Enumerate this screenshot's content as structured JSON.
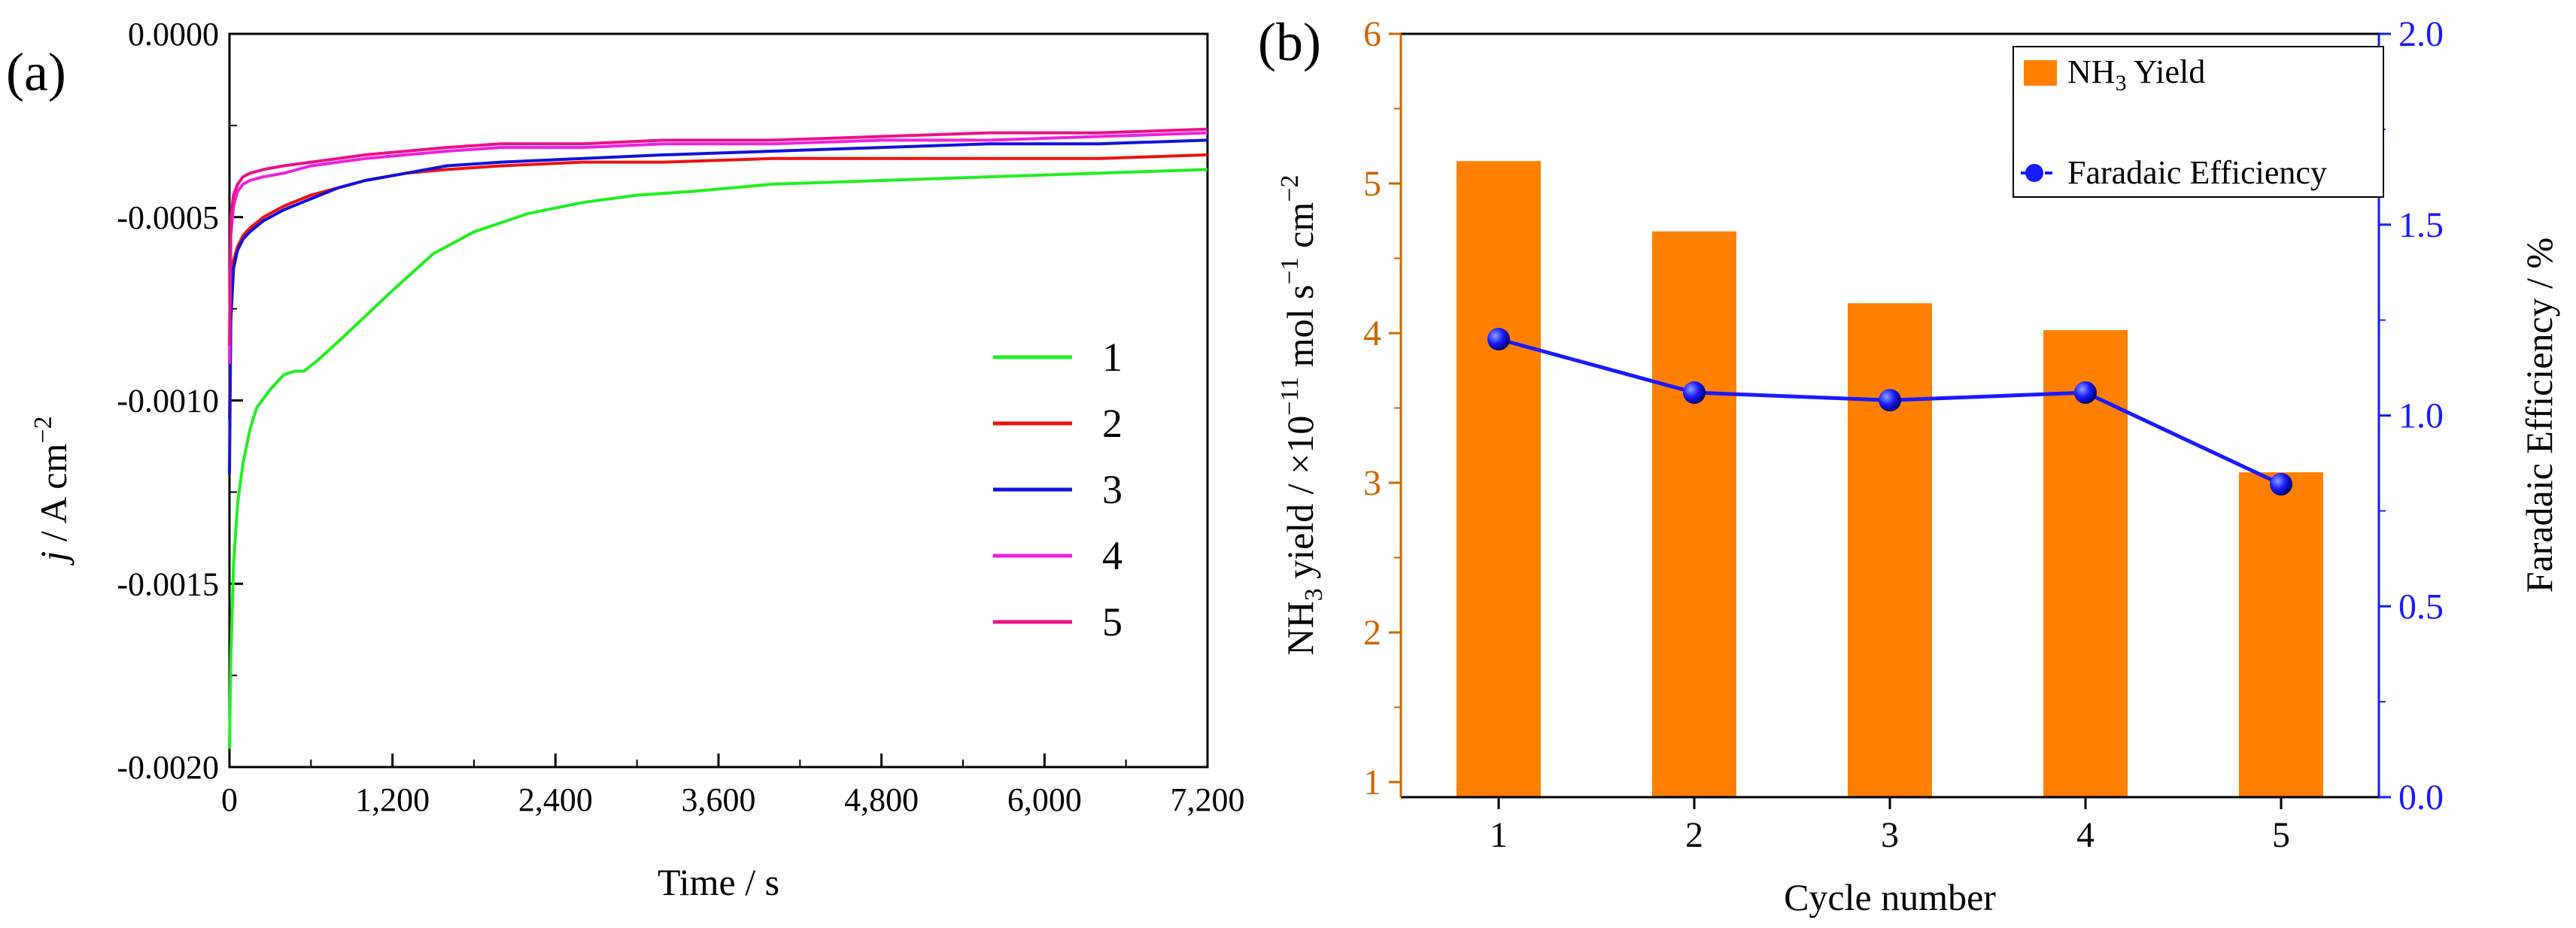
{
  "chart_data": [
    {
      "panel": "(a)",
      "type": "line",
      "xlabel": "Time / s",
      "ylabel_italic": "j",
      "ylabel_rest": " / A cm",
      "ylabel_sup": "−2",
      "xlim": [
        0,
        7200
      ],
      "ylim": [
        -0.002,
        0
      ],
      "xticks": [
        "0",
        "1,200",
        "2,400",
        "3,600",
        "4,800",
        "6,000",
        "7,200"
      ],
      "xtick_values": [
        0,
        1200,
        2400,
        3600,
        4800,
        6000,
        7200
      ],
      "yticks": [
        "-0.0020",
        "-0.0015",
        "-0.0010",
        "-0.0005",
        "0.0000"
      ],
      "ytick_values": [
        -0.002,
        -0.0015,
        -0.001,
        -0.0005,
        0
      ],
      "legend": [
        "1",
        "2",
        "3",
        "4",
        "5"
      ],
      "series": [
        {
          "name": "1",
          "color": "#22ee22",
          "x": [
            0,
            10,
            30,
            60,
            100,
            150,
            200,
            300,
            400,
            480,
            550,
            650,
            800,
            1000,
            1200,
            1500,
            1800,
            2200,
            2600,
            3000,
            3400,
            4000,
            4800,
            5600,
            6400,
            7200
          ],
          "y": [
            -0.00195,
            -0.0017,
            -0.00145,
            -0.00128,
            -0.00117,
            -0.00108,
            -0.00102,
            -0.00097,
            -0.00093,
            -0.00092,
            -0.00092,
            -0.00089,
            -0.00084,
            -0.00077,
            -0.0007,
            -0.0006,
            -0.00054,
            -0.00049,
            -0.00046,
            -0.00044,
            -0.00043,
            -0.00041,
            -0.0004,
            -0.00039,
            -0.00038,
            -0.00037
          ]
        },
        {
          "name": "2",
          "color": "#ee1111",
          "x": [
            0,
            10,
            30,
            60,
            100,
            150,
            250,
            400,
            600,
            800,
            1000,
            1300,
            1600,
            2000,
            2600,
            3200,
            4000,
            4800,
            5600,
            6400,
            7200
          ],
          "y": [
            -0.00105,
            -0.00075,
            -0.00062,
            -0.00058,
            -0.00055,
            -0.00053,
            -0.0005,
            -0.00047,
            -0.00044,
            -0.00042,
            -0.0004,
            -0.00038,
            -0.00037,
            -0.00036,
            -0.00035,
            -0.00035,
            -0.00034,
            -0.00034,
            -0.00034,
            -0.00034,
            -0.00033
          ]
        },
        {
          "name": "3",
          "color": "#1111dd",
          "x": [
            0,
            10,
            30,
            60,
            100,
            150,
            250,
            400,
            600,
            800,
            1000,
            1300,
            1600,
            2000,
            2600,
            3200,
            4000,
            4800,
            5600,
            6400,
            7200
          ],
          "y": [
            -0.0012,
            -0.00078,
            -0.00064,
            -0.00059,
            -0.00056,
            -0.00054,
            -0.00051,
            -0.00048,
            -0.00045,
            -0.00042,
            -0.0004,
            -0.00038,
            -0.00036,
            -0.00035,
            -0.00034,
            -0.00033,
            -0.00032,
            -0.00031,
            -0.0003,
            -0.0003,
            -0.00029
          ]
        },
        {
          "name": "4",
          "color": "#ee22dd",
          "x": [
            0,
            10,
            30,
            60,
            100,
            150,
            250,
            400,
            600,
            800,
            1000,
            1300,
            1600,
            2000,
            2600,
            3200,
            4000,
            4800,
            5600,
            6400,
            7200
          ],
          "y": [
            -0.0009,
            -0.00055,
            -0.00047,
            -0.00043,
            -0.00041,
            -0.0004,
            -0.00039,
            -0.00038,
            -0.00036,
            -0.00035,
            -0.00034,
            -0.00033,
            -0.00032,
            -0.00031,
            -0.00031,
            -0.0003,
            -0.0003,
            -0.00029,
            -0.00029,
            -0.00028,
            -0.00027
          ]
        },
        {
          "name": "5",
          "color": "#ee1188",
          "x": [
            0,
            10,
            30,
            60,
            100,
            150,
            250,
            400,
            600,
            800,
            1000,
            1300,
            1600,
            2000,
            2600,
            3200,
            4000,
            4800,
            5600,
            6400,
            7200
          ],
          "y": [
            -0.00085,
            -0.0005,
            -0.00044,
            -0.00041,
            -0.00039,
            -0.00038,
            -0.00037,
            -0.00036,
            -0.00035,
            -0.00034,
            -0.00033,
            -0.00032,
            -0.00031,
            -0.0003,
            -0.0003,
            -0.00029,
            -0.00029,
            -0.00028,
            -0.00027,
            -0.00027,
            -0.00026
          ]
        }
      ]
    },
    {
      "panel": "(b)",
      "type": "bar",
      "categories": [
        "1",
        "2",
        "3",
        "4",
        "5"
      ],
      "xlabel": "Cycle number",
      "ylabel_left_parts": [
        "NH",
        "3",
        " yield / ×10",
        "−11",
        " mol s",
        "−1",
        " cm",
        "−2"
      ],
      "ylabel_right": "Faradaic Efficiency / %",
      "ylim_left": [
        1,
        6
      ],
      "yticks_left": [
        "1",
        "2",
        "3",
        "4",
        "5",
        "6"
      ],
      "ytick_left_values": [
        1,
        2,
        3,
        4,
        5,
        6
      ],
      "ylim_right": [
        0,
        2
      ],
      "yticks_right": [
        "0.0",
        "0.5",
        "1.0",
        "1.5",
        "2.0"
      ],
      "ytick_right_values": [
        0,
        0.5,
        1,
        1.5,
        2
      ],
      "left_axis_color": "#cc6600",
      "right_axis_color": "#1a1aff",
      "series": [
        {
          "name": "NH3 Yield",
          "legend_main": "NH",
          "legend_sub": "3",
          "legend_rest": " Yield",
          "kind": "bar",
          "axis": "left",
          "color": "#ff8000",
          "values": [
            5.15,
            4.68,
            4.2,
            4.02,
            3.07
          ]
        },
        {
          "name": "Faradaic Efficiency",
          "kind": "line",
          "axis": "right",
          "color": "#1a1aff",
          "values": [
            1.2,
            1.06,
            1.04,
            1.06,
            0.82
          ]
        }
      ]
    }
  ]
}
